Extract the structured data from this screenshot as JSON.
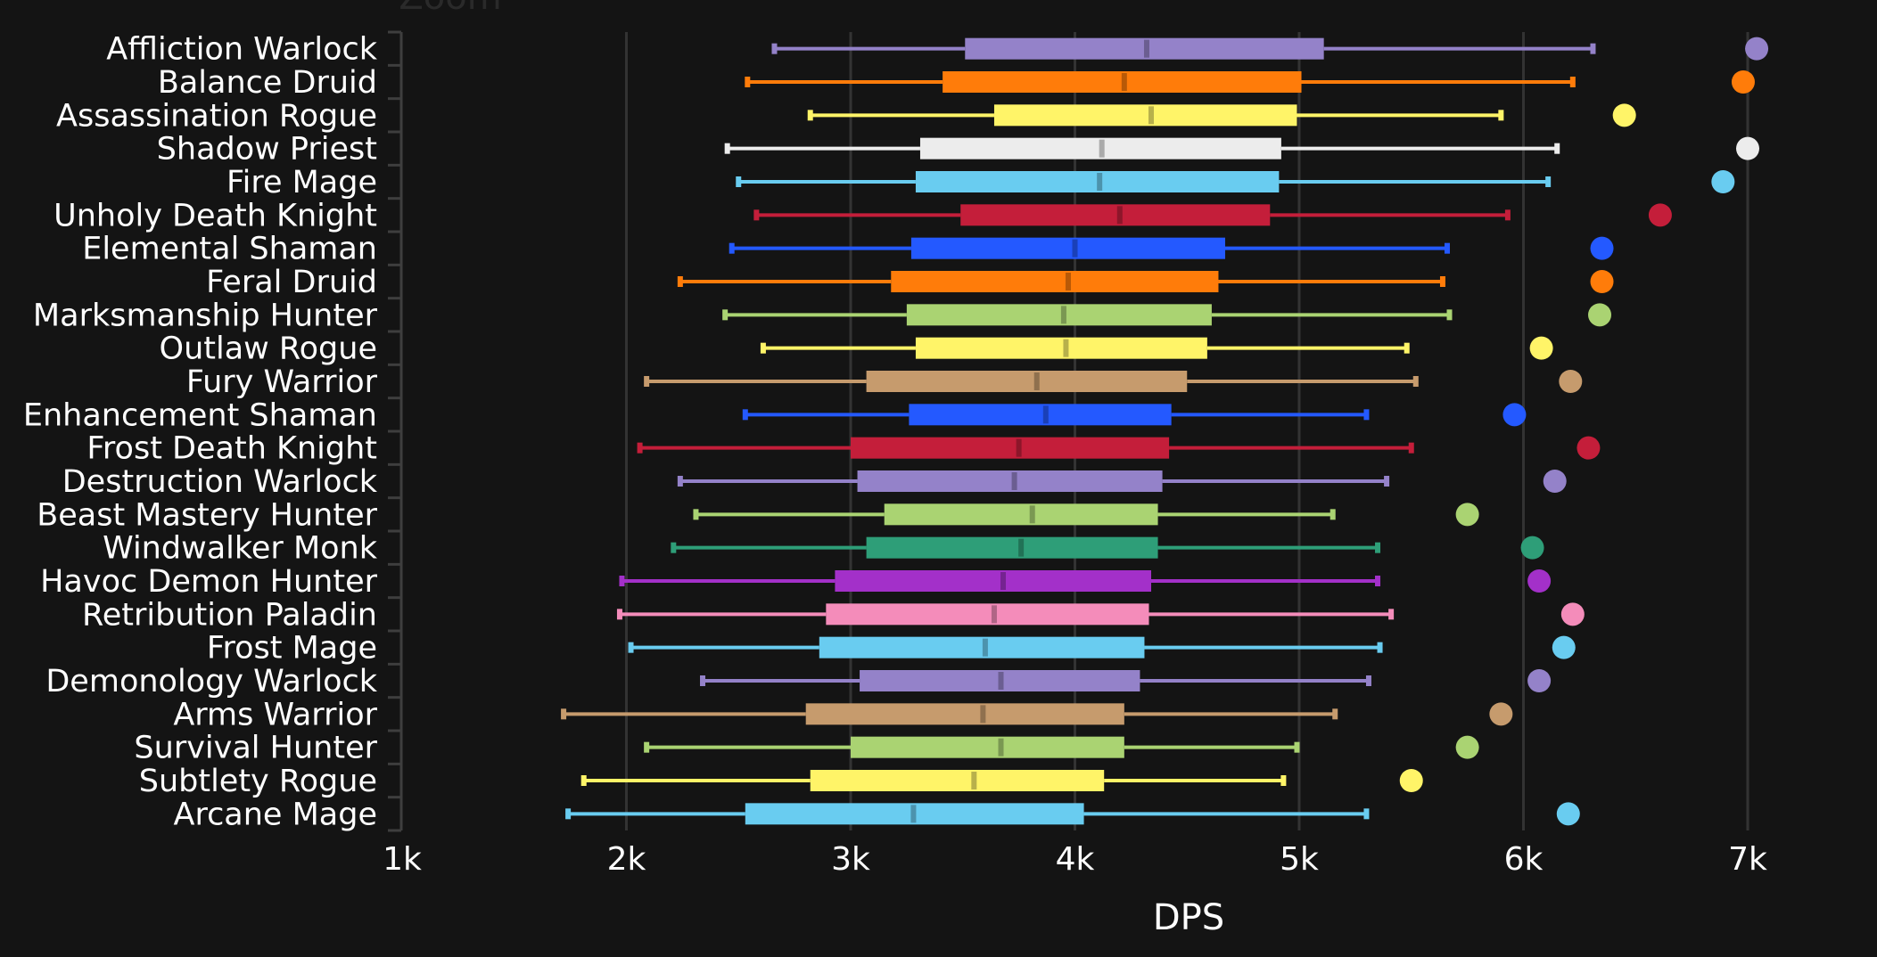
{
  "chart_data": {
    "type": "boxplot",
    "title": "",
    "xlabel": "DPS",
    "ylabel": "",
    "xlim": [
      1000,
      7000
    ],
    "x_ticks": [
      1000,
      2000,
      3000,
      4000,
      5000,
      6000,
      7000
    ],
    "x_tick_labels": [
      "1k",
      "2k",
      "3k",
      "4k",
      "5k",
      "6k",
      "7k"
    ],
    "grid": "vertical",
    "legend": "none",
    "top_annotation": "Zoom",
    "series": [
      {
        "name": "Affliction Warlock",
        "color": "#9482c9",
        "min": 2660,
        "q1": 3510,
        "median": 4320,
        "q3": 5110,
        "max": 6310,
        "top": 7040
      },
      {
        "name": "Balance Druid",
        "color": "#ff7c0a",
        "min": 2540,
        "q1": 3410,
        "median": 4220,
        "q3": 5010,
        "max": 6220,
        "top": 6980
      },
      {
        "name": "Assassination Rogue",
        "color": "#fff468",
        "min": 2820,
        "q1": 3640,
        "median": 4340,
        "q3": 4990,
        "max": 5900,
        "top": 6450
      },
      {
        "name": "Shadow Priest",
        "color": "#ececec",
        "min": 2450,
        "q1": 3310,
        "median": 4120,
        "q3": 4920,
        "max": 6150,
        "top": 7000
      },
      {
        "name": "Fire Mage",
        "color": "#69ccf0",
        "min": 2500,
        "q1": 3290,
        "median": 4110,
        "q3": 4910,
        "max": 6110,
        "top": 6890
      },
      {
        "name": "Unholy Death Knight",
        "color": "#c41e3a",
        "min": 2580,
        "q1": 3490,
        "median": 4200,
        "q3": 4870,
        "max": 5930,
        "top": 6610
      },
      {
        "name": "Elemental Shaman",
        "color": "#2459ff",
        "min": 2470,
        "q1": 3270,
        "median": 4000,
        "q3": 4670,
        "max": 5660,
        "top": 6350
      },
      {
        "name": "Feral Druid",
        "color": "#ff7c0a",
        "min": 2240,
        "q1": 3180,
        "median": 3970,
        "q3": 4640,
        "max": 5640,
        "top": 6350
      },
      {
        "name": "Marksmanship Hunter",
        "color": "#aad372",
        "min": 2440,
        "q1": 3250,
        "median": 3950,
        "q3": 4610,
        "max": 5670,
        "top": 6340
      },
      {
        "name": "Outlaw Rogue",
        "color": "#fff468",
        "min": 2610,
        "q1": 3290,
        "median": 3960,
        "q3": 4590,
        "max": 5480,
        "top": 6080
      },
      {
        "name": "Fury Warrior",
        "color": "#c69b6d",
        "min": 2090,
        "q1": 3070,
        "median": 3830,
        "q3": 4500,
        "max": 5520,
        "top": 6210
      },
      {
        "name": "Enhancement Shaman",
        "color": "#2459ff",
        "min": 2530,
        "q1": 3260,
        "median": 3870,
        "q3": 4430,
        "max": 5300,
        "top": 5960
      },
      {
        "name": "Frost Death Knight",
        "color": "#c41e3a",
        "min": 2060,
        "q1": 3000,
        "median": 3750,
        "q3": 4420,
        "max": 5500,
        "top": 6290
      },
      {
        "name": "Destruction Warlock",
        "color": "#9482c9",
        "min": 2240,
        "q1": 3030,
        "median": 3730,
        "q3": 4390,
        "max": 5390,
        "top": 6140
      },
      {
        "name": "Beast Mastery Hunter",
        "color": "#aad372",
        "min": 2310,
        "q1": 3150,
        "median": 3810,
        "q3": 4370,
        "max": 5150,
        "top": 5750
      },
      {
        "name": "Windwalker Monk",
        "color": "#2e9e78",
        "min": 2210,
        "q1": 3070,
        "median": 3760,
        "q3": 4370,
        "max": 5350,
        "top": 6040
      },
      {
        "name": "Havoc Demon Hunter",
        "color": "#a330c9",
        "min": 1980,
        "q1": 2930,
        "median": 3680,
        "q3": 4340,
        "max": 5350,
        "top": 6070
      },
      {
        "name": "Retribution Paladin",
        "color": "#f48cba",
        "min": 1970,
        "q1": 2890,
        "median": 3640,
        "q3": 4330,
        "max": 5410,
        "top": 6220
      },
      {
        "name": "Frost Mage",
        "color": "#69ccf0",
        "min": 2020,
        "q1": 2860,
        "median": 3600,
        "q3": 4310,
        "max": 5360,
        "top": 6180
      },
      {
        "name": "Demonology Warlock",
        "color": "#9482c9",
        "min": 2340,
        "q1": 3040,
        "median": 3670,
        "q3": 4290,
        "max": 5310,
        "top": 6070
      },
      {
        "name": "Arms Warrior",
        "color": "#c69b6d",
        "min": 1720,
        "q1": 2800,
        "median": 3590,
        "q3": 4220,
        "max": 5160,
        "top": 5900
      },
      {
        "name": "Survival Hunter",
        "color": "#aad372",
        "min": 2090,
        "q1": 3000,
        "median": 3670,
        "q3": 4220,
        "max": 4990,
        "top": 5750
      },
      {
        "name": "Subtlety Rogue",
        "color": "#fff468",
        "min": 1810,
        "q1": 2820,
        "median": 3550,
        "q3": 4130,
        "max": 4930,
        "top": 5500
      },
      {
        "name": "Arcane Mage",
        "color": "#69ccf0",
        "min": 1740,
        "q1": 2530,
        "median": 3280,
        "q3": 4040,
        "max": 5300,
        "top": 6200
      }
    ]
  }
}
